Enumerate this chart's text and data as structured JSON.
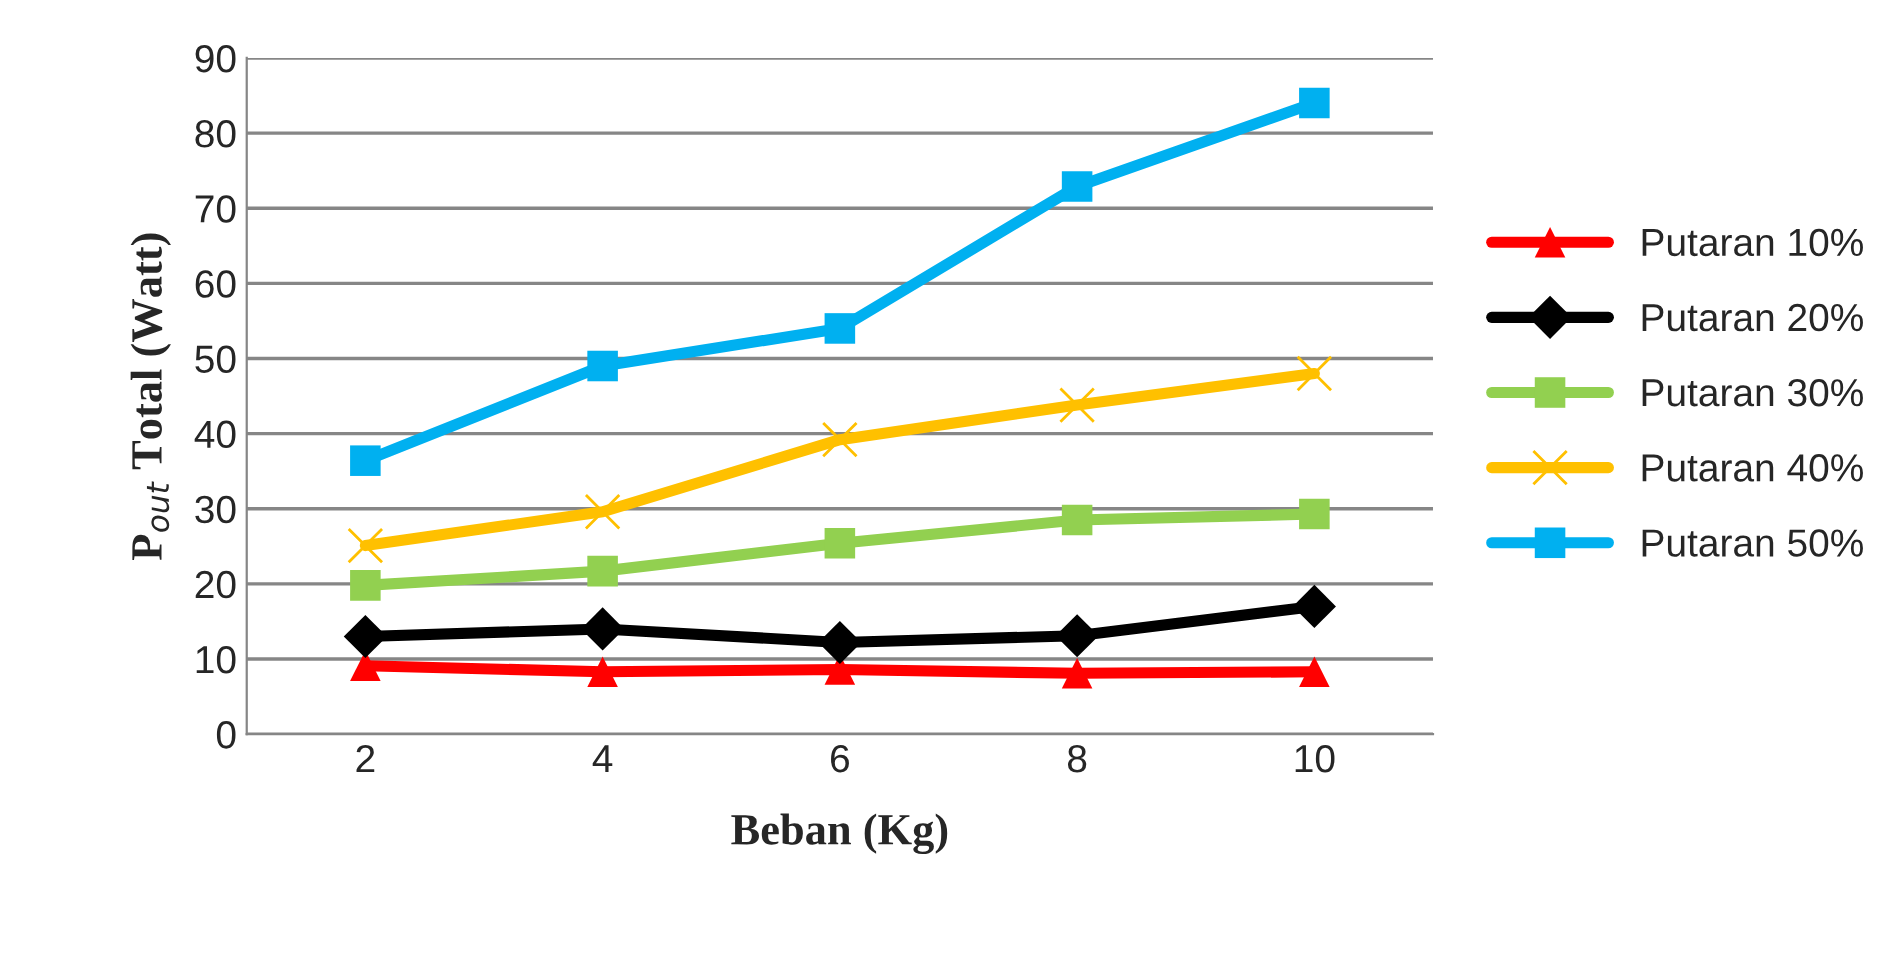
{
  "chart_data": {
    "type": "line",
    "xlabel": "Beban (Kg)",
    "ylabel": "P$_{out}$ Total (Watt)",
    "categories": [
      "2",
      "4",
      "6",
      "8",
      "10"
    ],
    "series": [
      {
        "name": "Putaran 10%",
        "color": "#ff0000",
        "marker": "triangle",
        "values": [
          9.1,
          8.3,
          8.6,
          8.1,
          8.3
        ]
      },
      {
        "name": "Putaran 20%",
        "color": "#000000",
        "marker": "diamond",
        "values": [
          13,
          14,
          12.2,
          13.1,
          17
        ]
      },
      {
        "name": "Putaran 30%",
        "color": "#92d050",
        "marker": "square",
        "values": [
          19.8,
          21.7,
          25.4,
          28.5,
          29.3
        ]
      },
      {
        "name": "Putaran 40%",
        "color": "#ffc000",
        "marker": "cross",
        "values": [
          25.1,
          29.6,
          39.2,
          43.8,
          48
        ]
      },
      {
        "name": "Putaran 50%",
        "color": "#00b0f0",
        "marker": "square",
        "values": [
          36.4,
          49,
          54,
          72.9,
          84
        ]
      }
    ],
    "ylim": [
      0,
      90
    ],
    "yticks": [
      0,
      10,
      20,
      30,
      40,
      50,
      60,
      70,
      80,
      90
    ],
    "grid": "y",
    "legend": "right",
    "line_style": "solid"
  }
}
